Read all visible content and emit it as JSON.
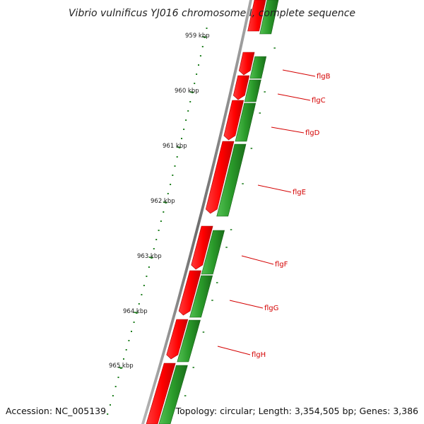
{
  "title": "Vibrio vulnificus YJ016 chromosome I, complete sequence",
  "footer": {
    "accession": "Accession: NC_005139",
    "topology": "Topology: circular; Length: 3,354,505 bp; Genes: 3,386"
  },
  "ticks": [
    "959 kbp",
    "960 kbp",
    "961 kbp",
    "962 kbp",
    "963 kbp",
    "964 kbp",
    "965 kbp"
  ],
  "genes": [
    "flgB",
    "flgC",
    "flgD",
    "flgE",
    "flgF",
    "flgG",
    "flgH"
  ],
  "colors": {
    "cds_red": "#ff1a1a",
    "cds_green": "#2a9a2a",
    "label_red": "#d40000",
    "tick_green": "#1f7f1f",
    "backbone": "#8a8a8a"
  }
}
